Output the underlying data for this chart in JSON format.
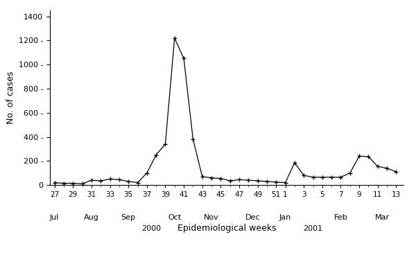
{
  "weeks_labels": [
    "27",
    "29",
    "31",
    "33",
    "35",
    "37",
    "39",
    "41",
    "43",
    "45",
    "47",
    "49",
    "51",
    "1",
    "3",
    "5",
    "7",
    "9",
    "11",
    "13"
  ],
  "x_positions": [
    0,
    1,
    2,
    3,
    4,
    5,
    6,
    7,
    8,
    9,
    10,
    11,
    12,
    13,
    14,
    15,
    16,
    17,
    18,
    19,
    20,
    21,
    22,
    23,
    24,
    25,
    26,
    27,
    28,
    29,
    30,
    31,
    32,
    33,
    34,
    35,
    36,
    37
  ],
  "values": [
    20,
    15,
    15,
    10,
    40,
    35,
    50,
    45,
    30,
    20,
    100,
    250,
    340,
    1220,
    1050,
    380,
    70,
    60,
    55,
    35,
    45,
    40,
    35,
    30,
    25,
    20,
    185,
    80,
    65,
    65,
    65,
    65,
    100,
    240,
    235,
    155,
    140,
    110
  ],
  "xtick_positions": [
    0,
    2,
    4,
    6,
    8,
    10,
    12,
    14,
    16,
    18,
    20,
    22,
    24,
    25,
    27,
    29,
    31,
    33,
    35,
    37
  ],
  "ytick_values": [
    0,
    200,
    400,
    600,
    800,
    1000,
    1200,
    1400
  ],
  "ylabel": "No. of cases",
  "xlabel": "Epidemiological weeks",
  "ylim": [
    0,
    1450
  ],
  "xlim": [
    -0.5,
    37.8
  ],
  "line_color": "#000000",
  "marker": "+",
  "marker_size": 5,
  "bg_color": "#ffffff",
  "month_labels": [
    "Jul",
    "Aug",
    "Sep",
    "Oct",
    "Nov",
    "Dec",
    "Jan",
    "Feb",
    "Mar"
  ],
  "month_x": [
    0,
    4,
    8,
    13,
    17,
    21.5,
    25,
    31,
    35.5
  ],
  "year_2000_x": 10.5,
  "year_2001_x": 28.0,
  "sep_oct_year_x": 10.5,
  "jan_feb_year_x": 28.0
}
